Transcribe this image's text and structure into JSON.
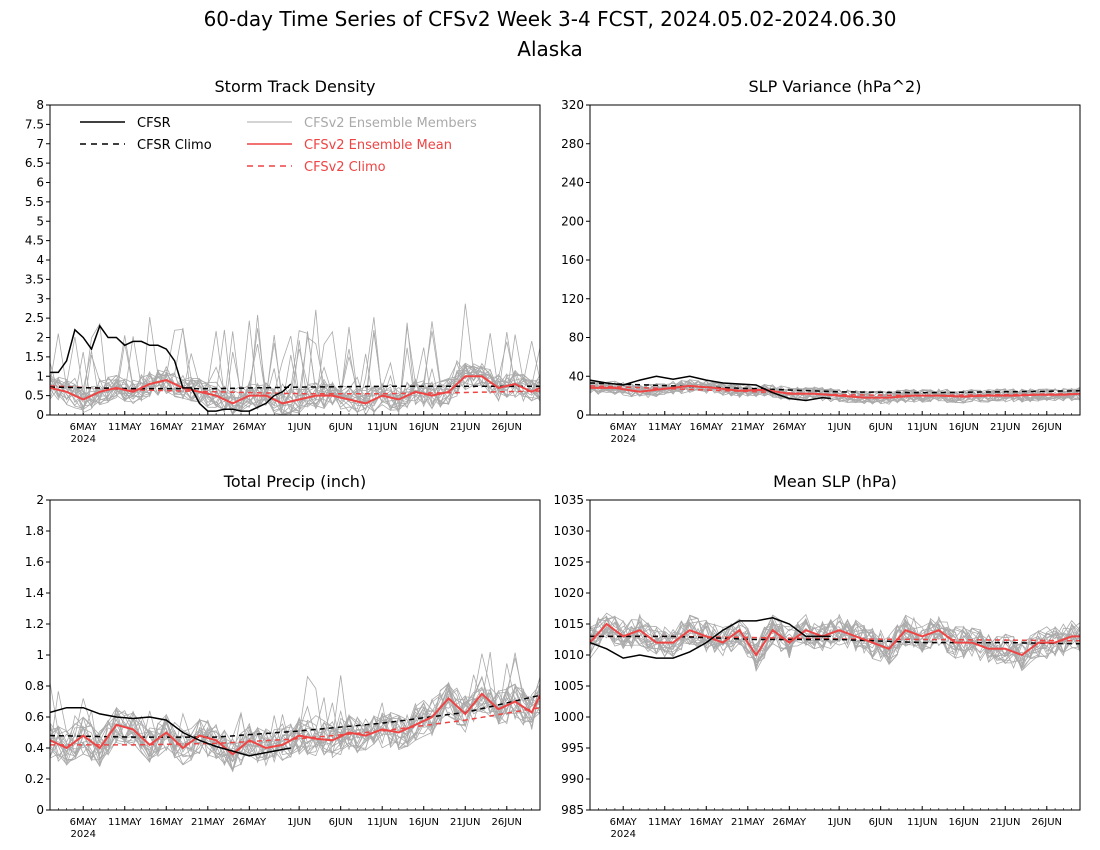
{
  "title_line1": "60-day Time Series of CFSv2 Week 3-4 FCST, 2024.05.02-2024.06.30",
  "title_line2": "Alaska",
  "colors": {
    "cfsr": "#000000",
    "member": "#aaaaaa",
    "mean": "#ee4444",
    "climo_red": "#ee4444"
  },
  "legend": [
    {
      "label": "CFSR",
      "style": "solid",
      "color": "#000000"
    },
    {
      "label": "CFSR Climo",
      "style": "dashed",
      "color": "#000000"
    },
    {
      "label": "CFSv2 Ensemble Members",
      "style": "solid",
      "color": "#aaaaaa"
    },
    {
      "label": "CFSv2 Ensemble Mean",
      "style": "solid",
      "color": "#ee4444"
    },
    {
      "label": "CFSv2 Climo",
      "style": "dashed",
      "color": "#ee4444"
    }
  ],
  "x_ticks": [
    {
      "day": 4,
      "label": "6MAY",
      "sub": "2024"
    },
    {
      "day": 9,
      "label": "11MAY"
    },
    {
      "day": 14,
      "label": "16MAY"
    },
    {
      "day": 19,
      "label": "21MAY"
    },
    {
      "day": 24,
      "label": "26MAY"
    },
    {
      "day": 30,
      "label": "1JUN"
    },
    {
      "day": 35,
      "label": "6JUN"
    },
    {
      "day": 40,
      "label": "11JUN"
    },
    {
      "day": 45,
      "label": "16JUN"
    },
    {
      "day": 50,
      "label": "21JUN"
    },
    {
      "day": 55,
      "label": "26JUN"
    }
  ],
  "chart_data": [
    {
      "type": "line",
      "title": "Storm Track Density",
      "x_start": "2024-05-02",
      "x_end": "2024-06-30",
      "ylim": [
        0,
        8
      ],
      "yticks": [
        "0",
        "0.5",
        "1",
        "1.5",
        "2",
        "2.5",
        "3",
        "3.5",
        "4",
        "4.5",
        "5",
        "5.5",
        "6",
        "6.5",
        "7",
        "7.5",
        "8"
      ],
      "series": [
        {
          "name": "CFSR",
          "x": [
            0,
            1,
            2,
            3,
            4,
            5,
            6,
            7,
            8,
            9,
            10,
            11,
            12,
            13,
            14,
            15,
            16,
            17,
            18,
            19,
            20,
            21,
            22,
            23,
            24,
            25,
            26,
            27,
            28,
            29
          ],
          "values": [
            1.1,
            1.1,
            1.4,
            2.2,
            2.0,
            1.7,
            2.3,
            2.0,
            2.0,
            1.8,
            1.9,
            1.9,
            1.8,
            1.8,
            1.7,
            1.4,
            0.7,
            0.7,
            0.3,
            0.1,
            0.1,
            0.15,
            0.15,
            0.1,
            0.1,
            0.2,
            0.3,
            0.5,
            0.6,
            0.8
          ]
        },
        {
          "name": "CFSR Climo",
          "x": [
            0,
            10,
            20,
            30,
            40,
            50,
            59
          ],
          "values": [
            0.72,
            0.68,
            0.68,
            0.72,
            0.74,
            0.74,
            0.74
          ]
        },
        {
          "name": "CFSv2 Ensemble Mean",
          "x": [
            0,
            2,
            4,
            6,
            8,
            10,
            12,
            14,
            16,
            18,
            20,
            22,
            24,
            26,
            28,
            30,
            32,
            34,
            36,
            38,
            40,
            42,
            44,
            46,
            48,
            50,
            52,
            54,
            56,
            58,
            59
          ],
          "values": [
            0.7,
            0.6,
            0.4,
            0.6,
            0.7,
            0.6,
            0.8,
            0.9,
            0.7,
            0.6,
            0.5,
            0.3,
            0.5,
            0.5,
            0.3,
            0.4,
            0.5,
            0.5,
            0.4,
            0.3,
            0.5,
            0.4,
            0.6,
            0.5,
            0.6,
            1.0,
            1.0,
            0.7,
            0.8,
            0.6,
            0.7
          ]
        },
        {
          "name": "CFSv2 Climo",
          "x": [
            0,
            10,
            20,
            30,
            40,
            50,
            59
          ],
          "values": [
            0.75,
            0.65,
            0.6,
            0.55,
            0.55,
            0.58,
            0.62
          ]
        }
      ]
    },
    {
      "type": "line",
      "title": "SLP Variance (hPa^2)",
      "x_start": "2024-05-02",
      "x_end": "2024-06-30",
      "ylim": [
        0,
        320
      ],
      "yticks": [
        "0",
        "40",
        "80",
        "120",
        "160",
        "200",
        "240",
        "280",
        "320"
      ],
      "series": [
        {
          "name": "CFSR",
          "x": [
            0,
            2,
            4,
            6,
            8,
            10,
            12,
            14,
            16,
            18,
            20,
            22,
            24,
            26,
            28,
            29
          ],
          "values": [
            36,
            33,
            31,
            36,
            40,
            37,
            40,
            36,
            33,
            32,
            31,
            23,
            17,
            15,
            18,
            17
          ]
        },
        {
          "name": "CFSR Climo",
          "x": [
            0,
            10,
            20,
            30,
            40,
            50,
            59
          ],
          "values": [
            33,
            30,
            27,
            24,
            23,
            24,
            25
          ]
        },
        {
          "name": "CFSv2 Ensemble Mean",
          "x": [
            0,
            3,
            6,
            9,
            12,
            15,
            18,
            21,
            24,
            27,
            30,
            33,
            36,
            39,
            42,
            45,
            48,
            51,
            54,
            57,
            59
          ],
          "values": [
            28,
            28,
            24,
            27,
            30,
            28,
            25,
            26,
            22,
            22,
            20,
            18,
            18,
            20,
            20,
            19,
            20,
            20,
            21,
            21,
            22
          ]
        },
        {
          "name": "CFSv2 Climo",
          "x": [
            0,
            10,
            20,
            30,
            40,
            50,
            59
          ],
          "values": [
            30,
            27,
            24,
            21,
            20,
            21,
            22
          ]
        }
      ]
    },
    {
      "type": "line",
      "title": "Total Precip (inch)",
      "x_start": "2024-05-02",
      "x_end": "2024-06-30",
      "ylim": [
        0,
        2
      ],
      "yticks": [
        "0",
        "0.2",
        "0.4",
        "0.6",
        "0.8",
        "1",
        "1.2",
        "1.4",
        "1.6",
        "1.8",
        "2"
      ],
      "series": [
        {
          "name": "CFSR",
          "x": [
            0,
            2,
            4,
            6,
            8,
            10,
            12,
            14,
            16,
            18,
            20,
            22,
            24,
            26,
            28,
            29
          ],
          "values": [
            0.63,
            0.66,
            0.66,
            0.62,
            0.6,
            0.59,
            0.6,
            0.58,
            0.5,
            0.45,
            0.41,
            0.38,
            0.35,
            0.37,
            0.39,
            0.4
          ]
        },
        {
          "name": "CFSR Climo",
          "x": [
            0,
            10,
            20,
            30,
            40,
            50,
            59
          ],
          "values": [
            0.48,
            0.47,
            0.47,
            0.51,
            0.56,
            0.63,
            0.74
          ]
        },
        {
          "name": "CFSv2 Ensemble Mean",
          "x": [
            0,
            2,
            4,
            6,
            8,
            10,
            12,
            14,
            16,
            18,
            20,
            22,
            24,
            26,
            28,
            30,
            32,
            34,
            36,
            38,
            40,
            42,
            44,
            46,
            48,
            50,
            52,
            54,
            56,
            58,
            59
          ],
          "values": [
            0.45,
            0.4,
            0.48,
            0.4,
            0.55,
            0.52,
            0.42,
            0.5,
            0.4,
            0.48,
            0.45,
            0.36,
            0.45,
            0.4,
            0.42,
            0.48,
            0.46,
            0.45,
            0.5,
            0.48,
            0.52,
            0.5,
            0.55,
            0.6,
            0.72,
            0.62,
            0.75,
            0.65,
            0.7,
            0.63,
            0.74
          ]
        },
        {
          "name": "CFSv2 Climo",
          "x": [
            0,
            10,
            20,
            30,
            40,
            50,
            59
          ],
          "values": [
            0.42,
            0.42,
            0.43,
            0.46,
            0.51,
            0.58,
            0.66
          ]
        }
      ]
    },
    {
      "type": "line",
      "title": "Mean SLP (hPa)",
      "x_start": "2024-05-02",
      "x_end": "2024-06-30",
      "ylim": [
        985,
        1035
      ],
      "yticks": [
        "985",
        "990",
        "995",
        "1000",
        "1005",
        "1010",
        "1015",
        "1020",
        "1025",
        "1030",
        "1035"
      ],
      "series": [
        {
          "name": "CFSR",
          "x": [
            0,
            2,
            4,
            6,
            8,
            10,
            12,
            14,
            16,
            18,
            20,
            22,
            24,
            26,
            28,
            29
          ],
          "values": [
            1012,
            1011,
            1009.5,
            1010,
            1009.5,
            1009.5,
            1010.5,
            1012,
            1014,
            1015.5,
            1015.5,
            1016,
            1015,
            1013,
            1013,
            1013
          ]
        },
        {
          "name": "CFSR Climo",
          "x": [
            0,
            10,
            20,
            30,
            40,
            50,
            59
          ],
          "values": [
            1013,
            1013,
            1012.5,
            1012.5,
            1012,
            1012,
            1011.8
          ]
        },
        {
          "name": "CFSv2 Ensemble Mean",
          "x": [
            0,
            2,
            4,
            6,
            8,
            10,
            12,
            14,
            16,
            18,
            20,
            22,
            24,
            26,
            28,
            30,
            32,
            34,
            36,
            38,
            40,
            42,
            44,
            46,
            48,
            50,
            52,
            54,
            56,
            58,
            59
          ],
          "values": [
            1012,
            1015,
            1013,
            1014,
            1012,
            1012,
            1014,
            1013,
            1012,
            1014,
            1010,
            1014,
            1012,
            1014,
            1013,
            1014,
            1013,
            1012,
            1011,
            1014,
            1013,
            1014,
            1012,
            1012,
            1011,
            1011,
            1010,
            1012,
            1012,
            1013,
            1013
          ]
        },
        {
          "name": "CFSv2 Climo",
          "x": [
            0,
            10,
            20,
            30,
            40,
            50,
            59
          ],
          "values": [
            1013,
            1013,
            1012.8,
            1012.6,
            1012.5,
            1012.4,
            1012.3
          ]
        }
      ]
    }
  ]
}
